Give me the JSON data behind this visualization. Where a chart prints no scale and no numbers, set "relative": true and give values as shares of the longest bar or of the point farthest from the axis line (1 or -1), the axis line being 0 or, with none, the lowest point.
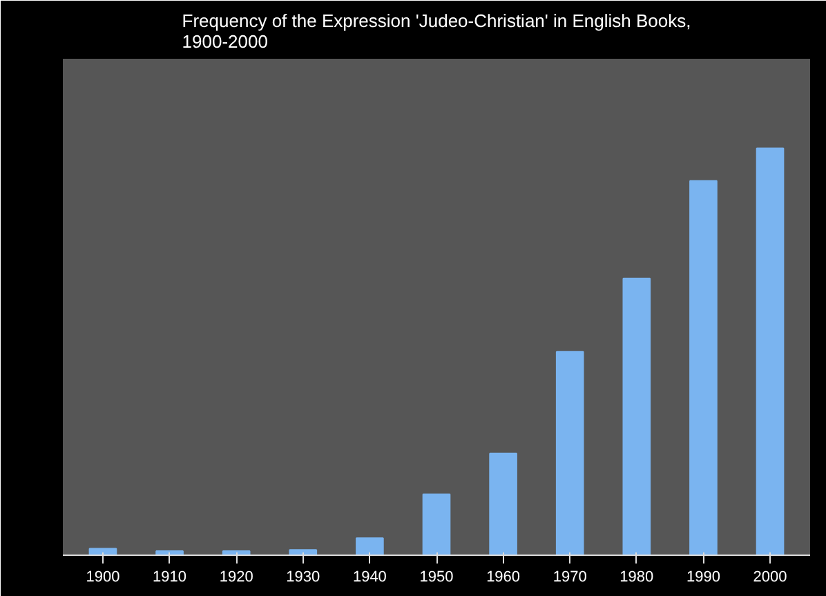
{
  "chart_data": {
    "type": "bar",
    "title": "Frequency of the Expression 'Judeo-Christian' in English Books,\n1900-2000",
    "categories": [
      "1900",
      "1910",
      "1920",
      "1930",
      "1940",
      "1950",
      "1960",
      "1970",
      "1980",
      "1990",
      "2000"
    ],
    "values": [
      0.016,
      0.01,
      0.01,
      0.013,
      0.042,
      0.15,
      0.25,
      0.5,
      0.68,
      0.92,
      1
    ],
    "color": "#7ab4f0",
    "relative": true
  }
}
